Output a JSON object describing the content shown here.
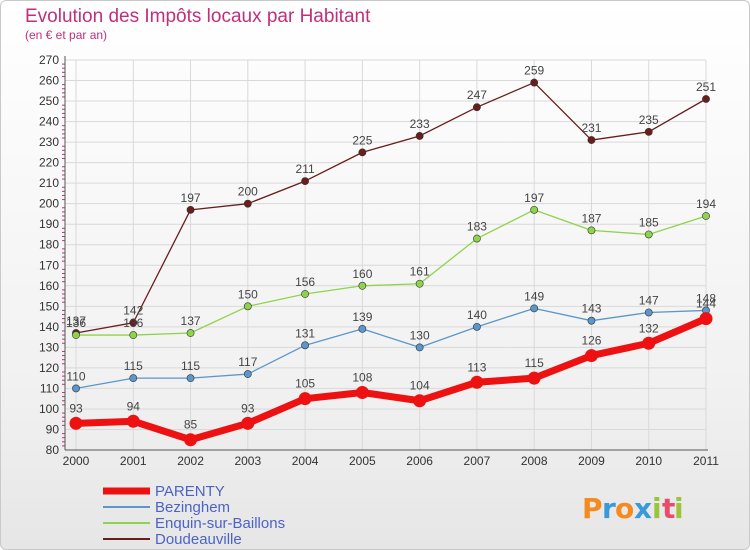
{
  "chart_data": {
    "type": "line",
    "title": "Evolution des Impôts locaux par Habitant",
    "subtitle": "(en € et par an)",
    "x": [
      "2000",
      "2001",
      "2002",
      "2003",
      "2004",
      "2005",
      "2006",
      "2007",
      "2008",
      "2009",
      "2010",
      "2011"
    ],
    "ylim": [
      80,
      270
    ],
    "yticks": [
      80,
      90,
      100,
      110,
      120,
      130,
      140,
      150,
      160,
      170,
      180,
      190,
      200,
      210,
      220,
      230,
      240,
      250,
      260,
      270
    ],
    "grid": true,
    "legend_position": "bottom-left",
    "series": [
      {
        "name": "PARENTY",
        "color": "#ee1111",
        "values": [
          93,
          94,
          85,
          93,
          105,
          108,
          104,
          113,
          115,
          126,
          132,
          144
        ],
        "labels": [
          "93",
          "94",
          "85",
          "93",
          "105",
          "108",
          "104",
          "113",
          "115",
          "126",
          "132",
          "144"
        ]
      },
      {
        "name": "Bezinghem",
        "color": "#5b96cc",
        "values": [
          110,
          115,
          115,
          117,
          131,
          139,
          130,
          140,
          149,
          143,
          147,
          148
        ],
        "labels": [
          "110",
          "115",
          "115",
          "117",
          "131",
          "139",
          "130",
          "140",
          "149",
          "143",
          "147",
          "148"
        ]
      },
      {
        "name": "Enquin-sur-Baillons",
        "color": "#8ed44a",
        "values": [
          136,
          136,
          137,
          150,
          156,
          160,
          161,
          183,
          197,
          187,
          185,
          194
        ],
        "labels": [
          "136",
          "136",
          "137",
          "150",
          "156",
          "160",
          "161",
          "183",
          "197",
          "187",
          "185",
          "194"
        ]
      },
      {
        "name": "Doudeauville",
        "color": "#6a1d1d",
        "values": [
          137,
          142,
          197,
          200,
          211,
          225,
          233,
          247,
          259,
          231,
          235,
          251
        ],
        "labels": [
          "137",
          "142",
          "197",
          "200",
          "211",
          "225",
          "233",
          "247",
          "259",
          "231",
          "235",
          "251"
        ]
      }
    ]
  },
  "brand": {
    "logo_letters": [
      "P",
      "r",
      "o",
      "x",
      "i",
      "t",
      "i"
    ],
    "logo_colors": [
      "#f58a1f",
      "#3a9ad9",
      "#f58a1f",
      "#3a9ad9",
      "#9bc43a",
      "#e94b6a",
      "#9bc43a"
    ]
  }
}
